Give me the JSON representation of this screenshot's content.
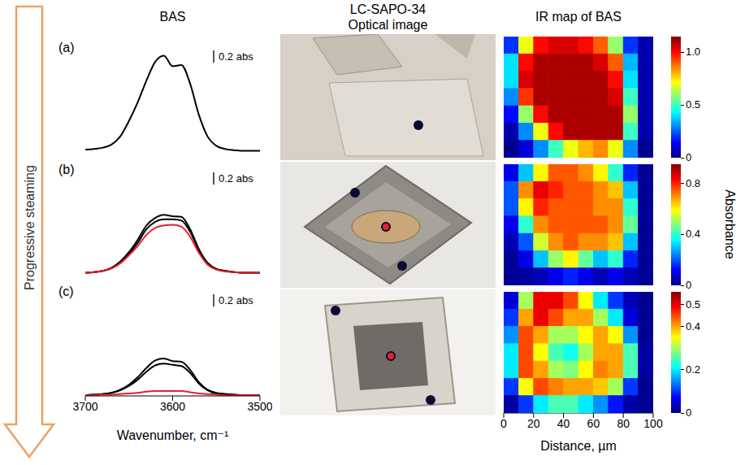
{
  "arrow_label": "Progressive steaming",
  "headers": {
    "spectra": "BAS",
    "images": [
      "LC-SAPO-34",
      "Optical image"
    ],
    "maps": "IR map of BAS"
  },
  "colorbar_label": "Absorbance",
  "chart_data": [
    {
      "type": "line",
      "label": "(a)",
      "scale_bar": {
        "value": 0.2,
        "label": "0.2 abs"
      },
      "x": [
        3700,
        3690,
        3680,
        3670,
        3660,
        3650,
        3640,
        3630,
        3620,
        3610,
        3600,
        3590,
        3580,
        3570,
        3560,
        3550,
        3540,
        3530,
        3520,
        3510,
        3500
      ],
      "xlim": [
        3700,
        3500
      ],
      "ylim": [
        0,
        1.7
      ],
      "tick_labels": false,
      "series": [
        {
          "color": "#000000",
          "values": [
            0.04,
            0.05,
            0.07,
            0.12,
            0.25,
            0.5,
            0.8,
            1.15,
            1.45,
            1.55,
            1.38,
            1.4,
            1.1,
            0.6,
            0.25,
            0.1,
            0.05,
            0.03,
            0.02,
            0.02,
            0.02
          ]
        }
      ]
    },
    {
      "type": "line",
      "label": "(b)",
      "scale_bar": {
        "value": 0.2,
        "label": "0.2 abs"
      },
      "x": [
        3700,
        3690,
        3680,
        3670,
        3660,
        3650,
        3640,
        3630,
        3620,
        3610,
        3600,
        3590,
        3580,
        3570,
        3560,
        3550,
        3540,
        3530,
        3520,
        3510,
        3500
      ],
      "xlim": [
        3700,
        3500
      ],
      "ylim": [
        0,
        1.7
      ],
      "tick_labels": false,
      "series": [
        {
          "color": "#000000",
          "values": [
            0.02,
            0.03,
            0.05,
            0.1,
            0.2,
            0.35,
            0.55,
            0.78,
            0.9,
            0.95,
            0.93,
            0.92,
            0.72,
            0.4,
            0.18,
            0.08,
            0.05,
            0.03,
            0.02,
            0.02,
            0.02
          ]
        },
        {
          "color": "#000000",
          "values": [
            0.02,
            0.03,
            0.05,
            0.09,
            0.18,
            0.32,
            0.5,
            0.72,
            0.84,
            0.88,
            0.88,
            0.86,
            0.68,
            0.38,
            0.17,
            0.08,
            0.05,
            0.03,
            0.02,
            0.02,
            0.02
          ]
        },
        {
          "color": "#e8202a",
          "values": [
            0.02,
            0.03,
            0.05,
            0.09,
            0.17,
            0.3,
            0.45,
            0.63,
            0.74,
            0.78,
            0.79,
            0.76,
            0.6,
            0.34,
            0.15,
            0.07,
            0.04,
            0.03,
            0.02,
            0.02,
            0.02
          ]
        }
      ]
    },
    {
      "type": "line",
      "label": "(c)",
      "scale_bar": {
        "value": 0.2,
        "label": "0.2 abs"
      },
      "x": [
        3700,
        3690,
        3680,
        3670,
        3660,
        3650,
        3640,
        3630,
        3620,
        3610,
        3600,
        3590,
        3580,
        3570,
        3560,
        3550,
        3540,
        3530,
        3520,
        3510,
        3500
      ],
      "xlim": [
        3700,
        3500
      ],
      "xticks": [
        3700,
        3600,
        3500
      ],
      "xlabel": "Wavenumber, cm⁻¹",
      "ylim": [
        0,
        1.7
      ],
      "tick_labels": "x",
      "series": [
        {
          "color": "#000000",
          "values": [
            0.01,
            0.02,
            0.03,
            0.05,
            0.1,
            0.18,
            0.3,
            0.45,
            0.57,
            0.6,
            0.56,
            0.55,
            0.42,
            0.22,
            0.1,
            0.05,
            0.03,
            0.02,
            0.01,
            0.01,
            0.01
          ]
        },
        {
          "color": "#000000",
          "values": [
            0.01,
            0.02,
            0.03,
            0.05,
            0.09,
            0.16,
            0.26,
            0.39,
            0.49,
            0.52,
            0.5,
            0.48,
            0.37,
            0.2,
            0.09,
            0.04,
            0.03,
            0.02,
            0.01,
            0.01,
            0.01
          ]
        },
        {
          "color": "#e8202a",
          "values": [
            0.01,
            0.01,
            0.02,
            0.02,
            0.03,
            0.04,
            0.05,
            0.07,
            0.08,
            0.08,
            0.08,
            0.08,
            0.06,
            0.04,
            0.03,
            0.02,
            0.01,
            0.01,
            0.01,
            0.01,
            0.01
          ]
        }
      ]
    },
    {
      "type": "heatmap",
      "x_edges": [
        0,
        10,
        20,
        30,
        40,
        50,
        60,
        70,
        80,
        90,
        100
      ],
      "y_edges": [
        70,
        60,
        50,
        40,
        30,
        20,
        10,
        0
      ],
      "xlim": [
        0,
        100
      ],
      "ylim": [
        0,
        70
      ],
      "tick_labels": false,
      "colorbar": {
        "range": [
          0,
          1.15
        ],
        "ticks": [
          0,
          0.5,
          {
            "value": 1,
            "label": "1.0"
          }
        ]
      },
      "cells": [
        [
          0.2,
          0.7,
          1.0,
          1.05,
          1.05,
          1.0,
          0.9,
          0.6,
          0.2,
          0.05
        ],
        [
          0.4,
          1.0,
          1.1,
          1.1,
          1.1,
          1.1,
          1.05,
          0.9,
          0.35,
          0.05
        ],
        [
          0.4,
          1.05,
          1.1,
          1.1,
          1.1,
          1.1,
          1.1,
          1.0,
          0.4,
          0.05
        ],
        [
          0.3,
          0.95,
          1.1,
          1.1,
          1.1,
          1.1,
          1.1,
          1.05,
          0.5,
          0.05
        ],
        [
          0.15,
          0.6,
          1.0,
          1.1,
          1.1,
          1.1,
          1.1,
          1.1,
          0.6,
          0.05
        ],
        [
          0.05,
          0.3,
          0.7,
          1.0,
          1.1,
          1.1,
          1.1,
          1.1,
          0.5,
          0.05
        ],
        [
          0.02,
          0.1,
          0.3,
          0.5,
          0.7,
          0.8,
          0.85,
          0.7,
          0.3,
          0.02
        ]
      ]
    },
    {
      "type": "heatmap",
      "x_edges": [
        0,
        10,
        20,
        30,
        40,
        50,
        60,
        70,
        80,
        90,
        100
      ],
      "y_edges": [
        70,
        60,
        50,
        40,
        30,
        20,
        10,
        0
      ],
      "xlim": [
        0,
        100
      ],
      "ylim": [
        0,
        70
      ],
      "tick_labels": false,
      "colorbar": {
        "range": [
          0,
          0.95
        ],
        "ticks": [
          0,
          0.4,
          0.8
        ]
      },
      "cells": [
        [
          0.1,
          0.3,
          0.6,
          0.75,
          0.75,
          0.7,
          0.6,
          0.4,
          0.15,
          0.02
        ],
        [
          0.2,
          0.7,
          0.85,
          0.8,
          0.75,
          0.75,
          0.7,
          0.65,
          0.3,
          0.02
        ],
        [
          0.2,
          0.6,
          0.8,
          0.75,
          0.75,
          0.75,
          0.7,
          0.7,
          0.4,
          0.02
        ],
        [
          0.1,
          0.4,
          0.7,
          0.75,
          0.75,
          0.75,
          0.75,
          0.7,
          0.45,
          0.02
        ],
        [
          0.05,
          0.2,
          0.55,
          0.7,
          0.75,
          0.7,
          0.7,
          0.65,
          0.3,
          0.02
        ],
        [
          0.02,
          0.1,
          0.3,
          0.5,
          0.6,
          0.45,
          0.3,
          0.4,
          0.15,
          0.02
        ],
        [
          0.02,
          0.03,
          0.05,
          0.1,
          0.15,
          0.1,
          0.05,
          0.1,
          0.05,
          0.02
        ]
      ]
    },
    {
      "type": "heatmap",
      "x_edges": [
        0,
        10,
        20,
        30,
        40,
        50,
        60,
        70,
        80,
        90,
        100
      ],
      "y_edges": [
        70,
        60,
        50,
        40,
        30,
        20,
        10,
        0
      ],
      "xlim": [
        0,
        100
      ],
      "xticks": [
        0,
        20,
        40,
        60,
        80,
        100
      ],
      "xlabel": "Distance, µm",
      "ylim": [
        0,
        70
      ],
      "tick_labels": "x",
      "colorbar": {
        "range": [
          0,
          0.56
        ],
        "ticks": [
          0,
          0.2,
          0.4,
          0.5
        ]
      },
      "cells": [
        [
          0.05,
          0.3,
          0.5,
          0.5,
          0.45,
          0.35,
          0.2,
          0.1,
          0.03,
          0.01
        ],
        [
          0.1,
          0.4,
          0.5,
          0.45,
          0.4,
          0.4,
          0.3,
          0.2,
          0.05,
          0.01
        ],
        [
          0.15,
          0.45,
          0.4,
          0.3,
          0.3,
          0.35,
          0.4,
          0.35,
          0.15,
          0.01
        ],
        [
          0.2,
          0.45,
          0.35,
          0.25,
          0.22,
          0.3,
          0.4,
          0.4,
          0.25,
          0.02
        ],
        [
          0.2,
          0.45,
          0.4,
          0.3,
          0.28,
          0.35,
          0.42,
          0.4,
          0.25,
          0.02
        ],
        [
          0.1,
          0.35,
          0.45,
          0.42,
          0.4,
          0.4,
          0.38,
          0.3,
          0.1,
          0.01
        ],
        [
          0.02,
          0.1,
          0.2,
          0.25,
          0.25,
          0.2,
          0.15,
          0.08,
          0.02,
          0.01
        ]
      ]
    }
  ]
}
